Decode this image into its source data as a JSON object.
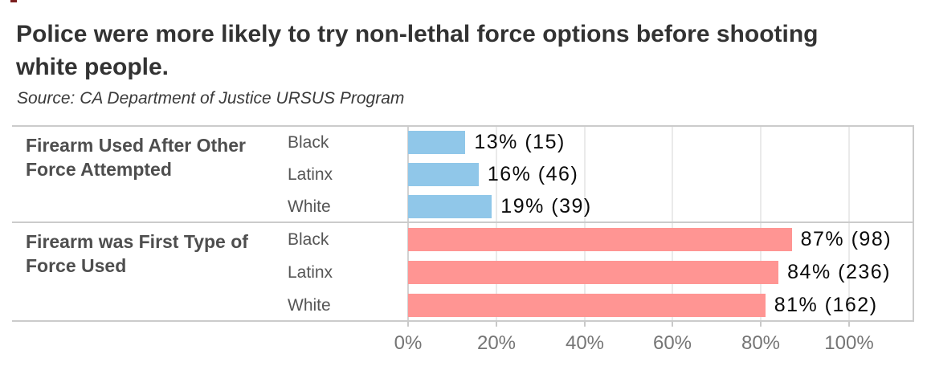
{
  "page": {
    "title_line1": "Police were more likely to try non-lethal force options before shooting",
    "title_line2": "white people.",
    "subtitle": "Source: CA Department of Justice URSUS Program"
  },
  "colors": {
    "blue_bar": "#90c7e9",
    "red_bar": "#ff9593",
    "frame": "#cbcbcb",
    "grid": "#eaeaea",
    "zero_line": "#d2d2d2",
    "title_text": "#333333",
    "group_text": "#4e4e4e",
    "race_text": "#565656",
    "value_text": "#0a0a0a",
    "axis_text": "#757575"
  },
  "chart_data": {
    "type": "bar",
    "orientation": "horizontal",
    "title": "Police were more likely to try non-lethal force options before shooting white people.",
    "source": "Source: CA Department of Justice URSUS Program",
    "xlim": [
      0,
      100
    ],
    "x_ticks": [
      "0%",
      "20%",
      "40%",
      "60%",
      "80%",
      "100%"
    ],
    "grid": true,
    "legend": false,
    "value_label_format": "percent (count)",
    "groups": [
      {
        "label": "Firearm Used After Other Force Attempted",
        "label_lines": [
          "Firearm Used After Other",
          "Force Attempted"
        ],
        "bar_color": "#90c7e9",
        "rows": [
          {
            "race": "Black",
            "percent": 13,
            "count": 15,
            "label": "13% (15)"
          },
          {
            "race": "Latinx",
            "percent": 16,
            "count": 46,
            "label": "16% (46)"
          },
          {
            "race": "White",
            "percent": 19,
            "count": 39,
            "label": "19% (39)"
          }
        ]
      },
      {
        "label": "Firearm was First Type of Force Used",
        "label_lines": [
          "Firearm was First Type of",
          "Force Used"
        ],
        "bar_color": "#ff9593",
        "rows": [
          {
            "race": "Black",
            "percent": 87,
            "count": 98,
            "label": "87% (98)"
          },
          {
            "race": "Latinx",
            "percent": 84,
            "count": 236,
            "label": "84% (236)"
          },
          {
            "race": "White",
            "percent": 81,
            "count": 162,
            "label": "81% (162)"
          }
        ]
      }
    ]
  }
}
